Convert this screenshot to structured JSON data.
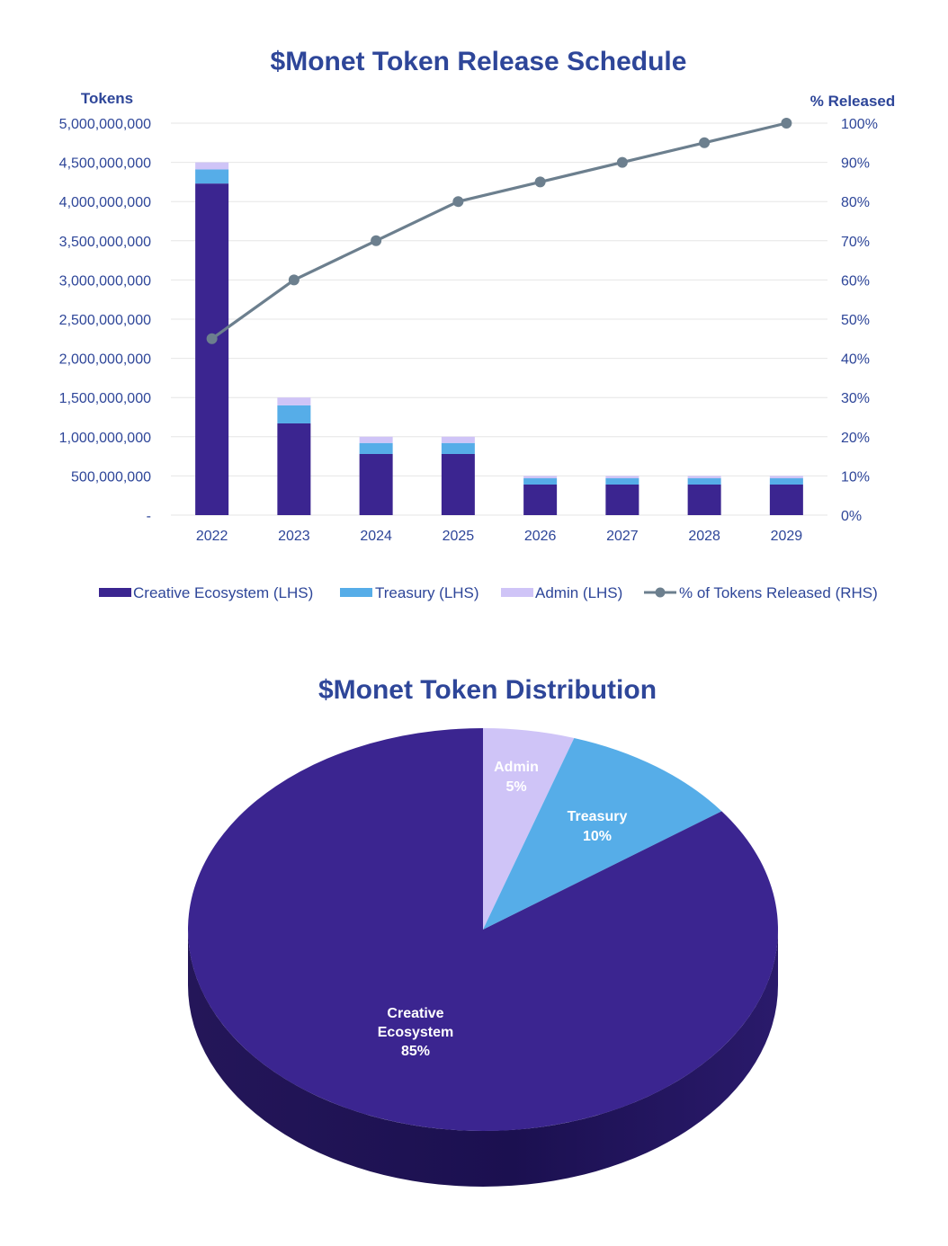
{
  "colors": {
    "creative": "#3B2590",
    "treasury": "#56ADE8",
    "admin": "#CFC4F7",
    "line": "#6C7F8E",
    "text": "#2E4699",
    "grid": "#E6E6E6"
  },
  "chart_data": [
    {
      "type": "bar",
      "stacked": true,
      "title": "$Monet Token Release Schedule",
      "ylabel": "Tokens",
      "y2label": "% Released",
      "categories": [
        "2022",
        "2023",
        "2024",
        "2025",
        "2026",
        "2027",
        "2028",
        "2029"
      ],
      "ylim": [
        0,
        5000000000
      ],
      "y2lim": [
        0,
        100
      ],
      "yticks": [
        {
          "value": 0,
          "label": "-"
        },
        {
          "value": 500000000,
          "label": "500,000,000"
        },
        {
          "value": 1000000000,
          "label": "1,000,000,000"
        },
        {
          "value": 1500000000,
          "label": "1,500,000,000"
        },
        {
          "value": 2000000000,
          "label": "2,000,000,000"
        },
        {
          "value": 2500000000,
          "label": "2,500,000,000"
        },
        {
          "value": 3000000000,
          "label": "3,000,000,000"
        },
        {
          "value": 3500000000,
          "label": "3,500,000,000"
        },
        {
          "value": 4000000000,
          "label": "4,000,000,000"
        },
        {
          "value": 4500000000,
          "label": "4,500,000,000"
        },
        {
          "value": 5000000000,
          "label": "5,000,000,000"
        }
      ],
      "y2ticks": [
        "0%",
        "10%",
        "20%",
        "30%",
        "40%",
        "50%",
        "60%",
        "70%",
        "80%",
        "90%",
        "100%"
      ],
      "series": [
        {
          "name": "Creative Ecosystem (LHS)",
          "key": "creative",
          "values": [
            4230000000,
            1170000000,
            780000000,
            780000000,
            390000000,
            390000000,
            390000000,
            390000000
          ]
        },
        {
          "name": "Treasury (LHS)",
          "key": "treasury",
          "values": [
            180000000,
            230000000,
            140000000,
            140000000,
            80000000,
            80000000,
            80000000,
            80000000
          ]
        },
        {
          "name": "Admin (LHS)",
          "key": "admin",
          "values": [
            90000000,
            100000000,
            80000000,
            80000000,
            30000000,
            30000000,
            30000000,
            30000000
          ]
        }
      ],
      "line_series": {
        "name": "% of Tokens Released (RHS)",
        "key": "line",
        "values": [
          45,
          60,
          70,
          80,
          85,
          90,
          95,
          100
        ]
      },
      "grid": true,
      "legend_position": "bottom"
    },
    {
      "type": "pie",
      "title": "$Monet Token Distribution",
      "slices": [
        {
          "key": "admin",
          "label": "Admin",
          "value": 5,
          "text": "5%"
        },
        {
          "key": "treasury",
          "label": "Treasury",
          "value": 10,
          "text": "10%"
        },
        {
          "key": "creative",
          "label": "Creative Ecosystem",
          "value": 85,
          "text": "85%"
        }
      ]
    }
  ]
}
